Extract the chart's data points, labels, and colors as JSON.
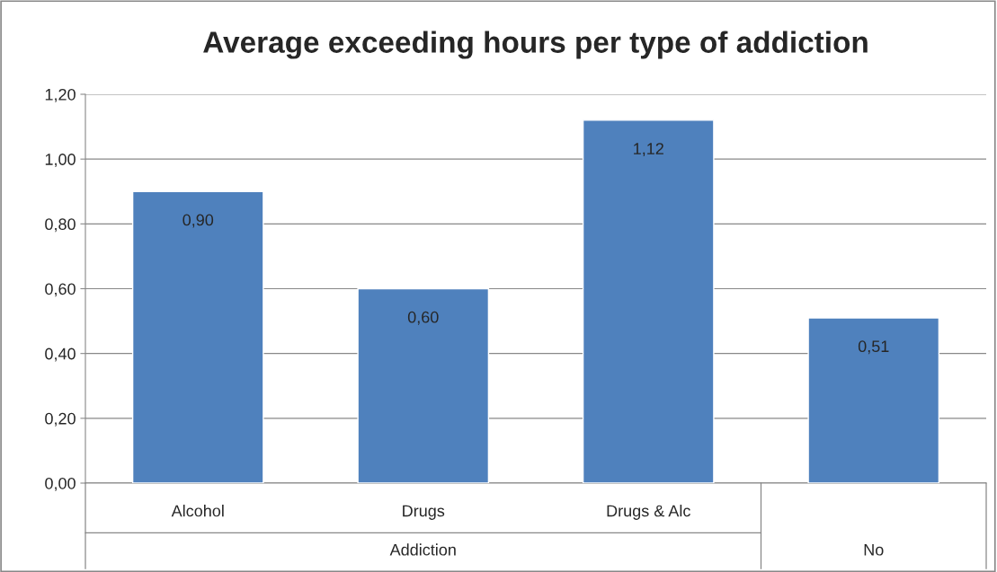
{
  "chart_data": {
    "type": "bar",
    "title": "Average exceeding hours per type of addiction",
    "categories": [
      "Alcohol",
      "Drugs",
      "Drugs & Alc",
      null
    ],
    "values": [
      0.9,
      0.6,
      1.12,
      0.51
    ],
    "value_labels": [
      "0,90",
      "0,60",
      "1,12",
      "0,51"
    ],
    "color": "#4f81bd",
    "annotations": [
      "Addiction",
      "No"
    ],
    "ylim": [
      0,
      1.2
    ],
    "yticks": [
      {
        "value": 0,
        "label": "0,00"
      },
      {
        "value": 0.2,
        "label": "0,20"
      },
      {
        "value": 0.4,
        "label": "0,40"
      },
      {
        "value": 0.6,
        "label": "0,60"
      },
      {
        "value": 0.8,
        "label": "0,80"
      },
      {
        "value": 1.0,
        "label": "1,00"
      },
      {
        "value": 1.2,
        "label": "1,20"
      }
    ],
    "grid": "y",
    "legend": false
  }
}
